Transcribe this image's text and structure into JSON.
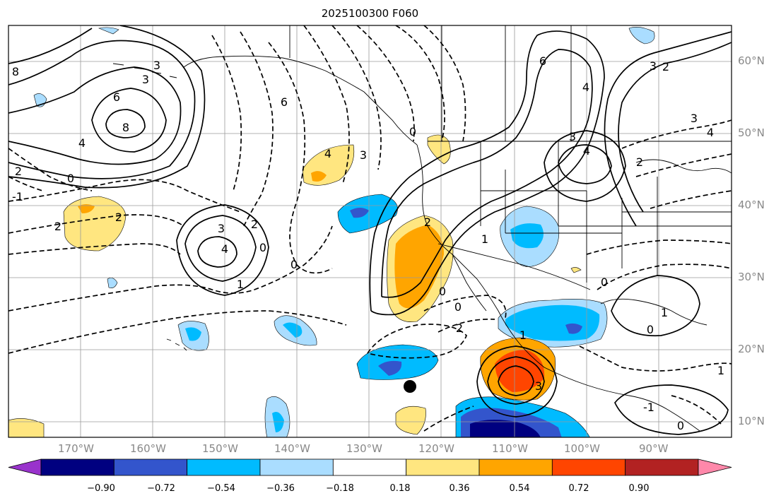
{
  "title": "2025100300 F060",
  "lon_ticks": [
    "170°W",
    "160°W",
    "150°W",
    "140°W",
    "130°W",
    "120°W",
    "110°W",
    "100°W",
    "90°W"
  ],
  "lat_ticks": [
    "10°N",
    "20°N",
    "30°N",
    "40°N",
    "50°N",
    "60°N"
  ],
  "colorbar": {
    "labels": [
      "−0.90",
      "−0.72",
      "−0.54",
      "−0.36",
      "−0.18",
      "0.18",
      "0.36",
      "0.54",
      "0.72",
      "0.90"
    ],
    "colors": [
      "#9933cc",
      "#000080",
      "#3355cc",
      "#00bbff",
      "#aaddff",
      "#ffffff",
      "#ffe680",
      "#ffa500",
      "#ff4500",
      "#b22222",
      "#ff88aa"
    ]
  },
  "contour_labels": [
    {
      "text": "8"
    },
    {
      "text": "3"
    },
    {
      "text": "6"
    },
    {
      "text": "8"
    },
    {
      "text": "4"
    },
    {
      "text": "2"
    },
    {
      "text": "-1"
    },
    {
      "text": "0"
    },
    {
      "text": "2"
    },
    {
      "text": "2"
    },
    {
      "text": "6"
    },
    {
      "text": "4"
    },
    {
      "text": "3"
    },
    {
      "text": "3"
    },
    {
      "text": "2"
    },
    {
      "text": "4"
    },
    {
      "text": "0"
    },
    {
      "text": "1"
    },
    {
      "text": "0"
    },
    {
      "text": "6"
    },
    {
      "text": "4"
    },
    {
      "text": "3"
    },
    {
      "text": "4"
    },
    {
      "text": "3"
    },
    {
      "text": "2"
    },
    {
      "text": "3"
    },
    {
      "text": "4"
    },
    {
      "text": "2"
    },
    {
      "text": "0"
    },
    {
      "text": "1"
    },
    {
      "text": "2"
    },
    {
      "text": "0"
    },
    {
      "text": "2"
    },
    {
      "text": "3"
    },
    {
      "text": "1"
    },
    {
      "text": "0"
    },
    {
      "text": "0"
    },
    {
      "text": "1"
    },
    {
      "text": "0"
    },
    {
      "text": "-1"
    },
    {
      "text": "0"
    },
    {
      "text": "3"
    },
    {
      "text": "1"
    }
  ],
  "marker": {
    "name": "storm-position-marker"
  }
}
